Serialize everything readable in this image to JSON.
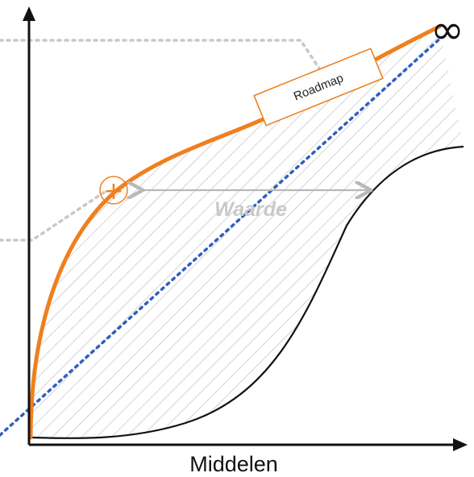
{
  "diagram": {
    "x_axis_label": "Middelen",
    "roadmap_label": "Roadmap",
    "value_label": "Waarde",
    "infinity_symbol": "∞",
    "plus_symbol": "+"
  },
  "colors": {
    "orange_curve": "#f07f1f",
    "blue_dotted": "#2f5fbf",
    "grey_dotted": "#c8c8c8",
    "hatch": "#bcbcbc",
    "axis": "#111111",
    "waarde_arrow": "#b9b9b9"
  }
}
